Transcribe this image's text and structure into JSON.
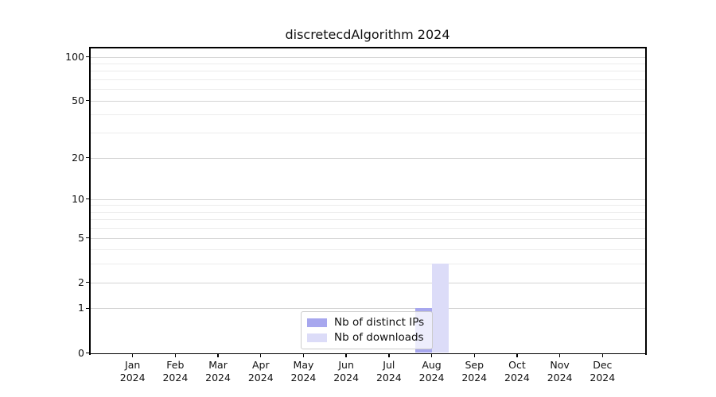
{
  "chart_data": {
    "type": "bar",
    "title": "discretecdAlgorithm 2024",
    "months": [
      "Jan",
      "Feb",
      "Mar",
      "Apr",
      "May",
      "Jun",
      "Jul",
      "Aug",
      "Sep",
      "Oct",
      "Nov",
      "Dec"
    ],
    "year_label": "2024",
    "series": [
      {
        "name": "Nb of distinct IPs",
        "color": "#a7a7ee",
        "values": [
          0,
          0,
          0,
          0,
          0,
          0,
          0,
          1,
          0,
          0,
          0,
          0
        ]
      },
      {
        "name": "Nb of downloads",
        "color": "#dcdcf8",
        "values": [
          0,
          0,
          0,
          0,
          0,
          0,
          0,
          3,
          0,
          0,
          0,
          0
        ]
      }
    ],
    "yticks": [
      0,
      1,
      2,
      5,
      10,
      20,
      50,
      100
    ],
    "yticks_minor": [
      3,
      4,
      6,
      7,
      8,
      9,
      30,
      40,
      60,
      70,
      80,
      90
    ],
    "scale": "log1p",
    "ylim": [
      0,
      116
    ],
    "xlabel": "",
    "ylabel": "",
    "grid": true,
    "legend_position": "lower center",
    "colors": {
      "major_grid": "#d4d4d4",
      "minor_grid": "#ececec",
      "spine": "#000000",
      "text": "#111111",
      "background": "#ffffff"
    }
  }
}
